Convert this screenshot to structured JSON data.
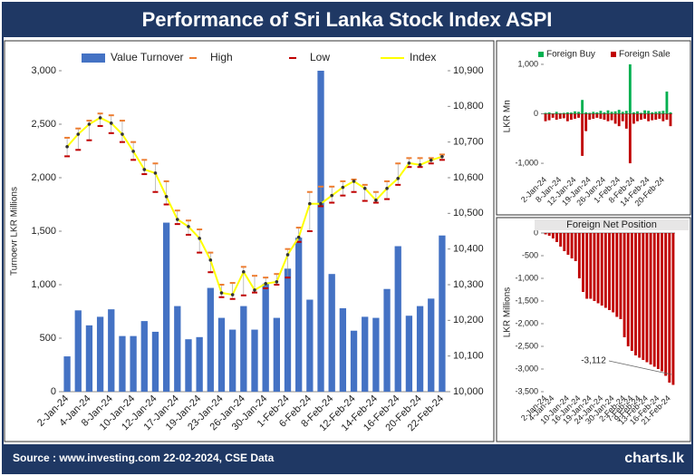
{
  "header": {
    "title": "Performance of Sri Lanka Stock Index ASPI"
  },
  "footer": {
    "source": "Source : www.investing.com 22-02-2024, CSE Data",
    "logo": "charts.lk"
  },
  "chart_data": [
    {
      "type": "combo",
      "y_label": "Turnoevr LKR Millions",
      "categories": [
        "2-Jan-24",
        null,
        "4-Jan-24",
        null,
        "8-Jan-24",
        null,
        "10-Jan-24",
        null,
        "12-Jan-24",
        null,
        "17-Jan-24",
        null,
        "19-Jan-24",
        null,
        "23-Jan-24",
        null,
        "26-Jan-24",
        null,
        "30-Jan-24",
        null,
        "1-Feb-24",
        null,
        "6-Feb-24",
        null,
        "8-Feb-24",
        null,
        "12-Feb-24",
        null,
        "14-Feb-24",
        null,
        "16-Feb-24",
        null,
        "20-Feb-24",
        null,
        "22-Feb-24"
      ],
      "series": [
        {
          "name": "Value Turnover",
          "kind": "bar",
          "color": "#4472c4",
          "values": [
            330,
            760,
            620,
            700,
            770,
            520,
            520,
            660,
            560,
            1580,
            800,
            490,
            510,
            970,
            690,
            580,
            800,
            580,
            1010,
            690,
            1150,
            1440,
            860,
            3000,
            1100,
            780,
            570,
            700,
            690,
            960,
            1360,
            710,
            800,
            870,
            1460
          ]
        },
        {
          "name": "High",
          "kind": "marker",
          "color": "#ed7d31",
          "axis": "y2",
          "values": [
            10712,
            10738,
            10760,
            10780,
            10775,
            10760,
            10700,
            10650,
            10640,
            10590,
            10508,
            10480,
            10455,
            10390,
            10300,
            10305,
            10350,
            10325,
            10320,
            10330,
            10400,
            10460,
            10560,
            10575,
            10575,
            10590,
            10595,
            10580,
            10560,
            10590,
            10640,
            10655,
            10655,
            10655,
            10665
          ]
        },
        {
          "name": "Low",
          "kind": "marker",
          "color": "#c00000",
          "axis": "y2",
          "values": [
            10660,
            10678,
            10705,
            10745,
            10725,
            10700,
            10650,
            10610,
            10560,
            10525,
            10470,
            10440,
            10390,
            10335,
            10265,
            10260,
            10270,
            10278,
            10290,
            10300,
            10320,
            10420,
            10450,
            10520,
            10530,
            10550,
            10560,
            10535,
            10530,
            10540,
            10580,
            10630,
            10630,
            10640,
            10650
          ]
        },
        {
          "name": "Index",
          "kind": "line",
          "color": "#ffff00",
          "axis": "y2",
          "values": [
            10687,
            10722,
            10750,
            10768,
            10753,
            10722,
            10674,
            10623,
            10613,
            10547,
            10483,
            10463,
            10430,
            10369,
            10277,
            10272,
            10336,
            10285,
            10303,
            10308,
            10384,
            10433,
            10527,
            10527,
            10550,
            10573,
            10590,
            10570,
            10537,
            10570,
            10598,
            10641,
            10636,
            10649,
            10659
          ]
        }
      ],
      "ylim": [
        0,
        3000
      ],
      "yticks": [
        0,
        500,
        {
          "value": 1000,
          "label": "1,000"
        },
        {
          "value": 1500,
          "label": "1,500"
        },
        {
          "value": 2000,
          "label": "2,000"
        },
        {
          "value": 2500,
          "label": "2,500"
        },
        {
          "value": 3000,
          "label": "3,000"
        }
      ],
      "y2lim": [
        10000,
        10900
      ],
      "y2ticks": [
        {
          "value": 10000,
          "label": "10,000"
        },
        {
          "value": 10100,
          "label": "10,100"
        },
        {
          "value": 10200,
          "label": "10,200"
        },
        {
          "value": 10300,
          "label": "10,300"
        },
        {
          "value": 10400,
          "label": "10,400"
        },
        {
          "value": 10500,
          "label": "10,500"
        },
        {
          "value": 10600,
          "label": "10,600"
        },
        {
          "value": 10700,
          "label": "10,700"
        },
        {
          "value": 10800,
          "label": "10,800"
        },
        {
          "value": 10900,
          "label": "10,900"
        }
      ],
      "legend": "top"
    },
    {
      "type": "bar",
      "y_label": "LKR Mn",
      "categories": [
        "2-Jan-24",
        null,
        null,
        null,
        "8-Jan-24",
        null,
        null,
        null,
        "12-Jan-24",
        null,
        null,
        null,
        "19-Jan-24",
        null,
        null,
        null,
        "26-Jan-24",
        null,
        null,
        null,
        "1-Feb-24",
        null,
        null,
        null,
        "8-Feb-24",
        null,
        null,
        null,
        "14-Feb-24",
        null,
        null,
        null,
        "20-Feb-24",
        null,
        null
      ],
      "series": [
        {
          "name": "Foreign Buy",
          "color": "#00b050",
          "values": [
            20,
            30,
            10,
            40,
            15,
            20,
            30,
            25,
            50,
            40,
            280,
            30,
            20,
            40,
            30,
            60,
            30,
            70,
            40,
            50,
            80,
            40,
            60,
            1000,
            30,
            50,
            20,
            70,
            60,
            30,
            40,
            50,
            60,
            450,
            30
          ]
        },
        {
          "name": "Foreign Sale",
          "color": "#c00000",
          "values": [
            -150,
            -130,
            -80,
            -120,
            -100,
            -90,
            -150,
            -120,
            -100,
            -80,
            -850,
            -350,
            -120,
            -100,
            -80,
            -100,
            -120,
            -150,
            -130,
            -200,
            -250,
            -150,
            -300,
            -1000,
            -200,
            -150,
            -120,
            -100,
            -150,
            -130,
            -120,
            -100,
            -150,
            -120,
            -250
          ]
        }
      ],
      "ylim": [
        -1200,
        1100
      ],
      "yticks": [
        {
          "value": -1000,
          "label": "-1,000"
        },
        0,
        {
          "value": 1000,
          "label": "1,000"
        }
      ],
      "legend": "top"
    },
    {
      "type": "bar",
      "title": "Foreign Net Position",
      "y_label": "LKR Millions",
      "annotation": "-3,112",
      "categories": [
        "2-Jan-24",
        null,
        "4-Jan-24",
        null,
        null,
        null,
        "10-Jan-24",
        null,
        null,
        "16-Jan-24",
        null,
        null,
        "19-Jan-24",
        null,
        null,
        "24-Jan-24",
        null,
        null,
        "30-Jan-24",
        null,
        null,
        "2-Feb-24",
        null,
        "7-Feb-24",
        null,
        "9-Feb-24",
        null,
        "13-Feb-24",
        null,
        null,
        "16-Feb-24",
        null,
        null,
        "21-Feb-24",
        null
      ],
      "series": [
        {
          "color": "#c00000",
          "values": [
            -30,
            -60,
            -120,
            -200,
            -300,
            -400,
            -480,
            -560,
            -620,
            -1000,
            -1300,
            -1450,
            -1450,
            -1500,
            -1550,
            -1600,
            -1650,
            -1700,
            -1750,
            -1850,
            -1900,
            -2300,
            -2500,
            -2600,
            -2700,
            -2750,
            -2800,
            -2850,
            -2900,
            -2950,
            -3000,
            -3050,
            -3150,
            -3300,
            -3350
          ]
        }
      ],
      "ylim": [
        -3500,
        0
      ],
      "yticks": [
        {
          "value": -3500,
          "label": "-3,500"
        },
        {
          "value": -3000,
          "label": "-3,000"
        },
        {
          "value": -2500,
          "label": "-2,500"
        },
        {
          "value": -2000,
          "label": "-2,000"
        },
        {
          "value": -1500,
          "label": "-1,500"
        },
        {
          "value": -1000,
          "label": "-1,000"
        },
        -500,
        0
      ]
    }
  ]
}
